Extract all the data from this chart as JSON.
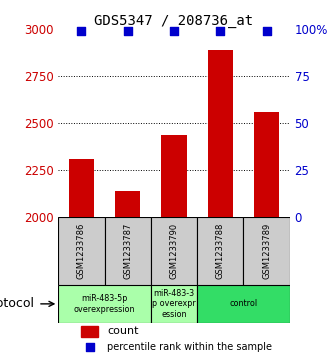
{
  "title": "GDS5347 / 208736_at",
  "samples": [
    "GSM1233786",
    "GSM1233787",
    "GSM1233790",
    "GSM1233788",
    "GSM1233789"
  ],
  "counts": [
    2310,
    2140,
    2440,
    2890,
    2560
  ],
  "percentiles": [
    99,
    99,
    99,
    99,
    99
  ],
  "ylim_left": [
    2000,
    3000
  ],
  "ylim_right": [
    0,
    100
  ],
  "yticks_left": [
    2000,
    2250,
    2500,
    2750,
    3000
  ],
  "yticks_right": [
    0,
    25,
    50,
    75,
    100
  ],
  "bar_color": "#cc0000",
  "dot_color": "#0000cc",
  "bar_width": 0.55,
  "proto_groups": [
    {
      "start": 0,
      "end": 1,
      "label": "miR-483-5p\noverexpression",
      "color": "#aaffaa"
    },
    {
      "start": 2,
      "end": 2,
      "label": "miR-483-3\np overexpr\nession",
      "color": "#aaffaa"
    },
    {
      "start": 3,
      "end": 4,
      "label": "control",
      "color": "#33dd66"
    }
  ],
  "protocol_label": "protocol",
  "legend_count_label": "count",
  "legend_percentile_label": "percentile rank within the sample",
  "tick_color_left": "#cc0000",
  "tick_color_right": "#0000cc",
  "sample_box_color": "#cccccc",
  "bg_color": "#ffffff",
  "dot_size": 35
}
